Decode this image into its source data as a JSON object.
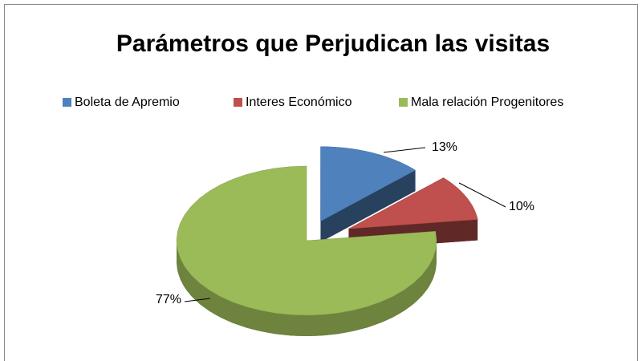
{
  "chart_data": {
    "type": "pie",
    "title": "Parámetros que Perjudican las visitas",
    "categories": [
      "Boleta de Apremio",
      "Interes Económico",
      "Mala relación Progenitores"
    ],
    "values": [
      13,
      10,
      77
    ],
    "value_labels": [
      "13%",
      "10%",
      "77%"
    ],
    "colors": [
      "#4f81bd",
      "#c0504d",
      "#9bbb59"
    ],
    "legend": "top"
  }
}
